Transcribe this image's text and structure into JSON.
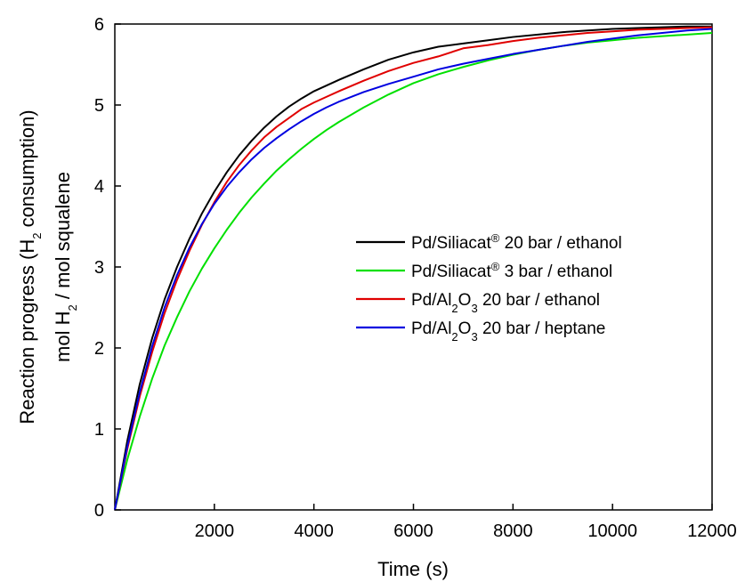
{
  "chart_data": {
    "type": "line",
    "xlabel": "Time (s)",
    "ylabel_line1": {
      "prefix": "Reaction progress (H",
      "sub": "2",
      "suffix": " consumption)"
    },
    "ylabel_line2": {
      "prefix": "mol H",
      "sub": "2",
      "suffix": " / mol squalene"
    },
    "xlim": [
      0,
      12000
    ],
    "ylim": [
      0,
      6
    ],
    "xticks": [
      2000,
      4000,
      6000,
      8000,
      10000,
      12000
    ],
    "yticks": [
      0,
      1,
      2,
      3,
      4,
      5,
      6
    ],
    "grid": false,
    "legend_position": "center-right",
    "series": [
      {
        "legend": {
          "parts": [
            {
              "t": "Pd/Siliacat"
            },
            {
              "t": "®",
              "sup": true
            },
            {
              "t": "  20 bar / ethanol"
            }
          ]
        },
        "color": "#000000",
        "x": [
          0,
          250,
          500,
          750,
          1000,
          1250,
          1500,
          1750,
          2000,
          2250,
          2500,
          2750,
          3000,
          3250,
          3500,
          3750,
          4000,
          4250,
          4500,
          5000,
          5500,
          6000,
          6500,
          7000,
          7500,
          8000,
          8500,
          9000,
          9500,
          10000,
          10500,
          11000,
          11500,
          12000
        ],
        "y": [
          0,
          0.85,
          1.55,
          2.12,
          2.6,
          3.0,
          3.35,
          3.66,
          3.93,
          4.17,
          4.38,
          4.56,
          4.72,
          4.86,
          4.98,
          5.08,
          5.17,
          5.24,
          5.31,
          5.44,
          5.56,
          5.65,
          5.72,
          5.76,
          5.8,
          5.84,
          5.87,
          5.9,
          5.92,
          5.94,
          5.95,
          5.96,
          5.97,
          5.97
        ]
      },
      {
        "legend": {
          "parts": [
            {
              "t": "Pd/Siliacat"
            },
            {
              "t": "®",
              "sup": true
            },
            {
              "t": " 3 bar / ethanol"
            }
          ]
        },
        "color": "#00e000",
        "x": [
          0,
          250,
          500,
          750,
          1000,
          1250,
          1500,
          1750,
          2000,
          2250,
          2500,
          2750,
          3000,
          3250,
          3500,
          3750,
          4000,
          4250,
          4500,
          5000,
          5500,
          6000,
          6500,
          7000,
          7500,
          8000,
          8500,
          9000,
          9500,
          10000,
          10500,
          11000,
          11500,
          12000
        ],
        "y": [
          0,
          0.62,
          1.15,
          1.62,
          2.03,
          2.38,
          2.7,
          2.98,
          3.23,
          3.46,
          3.67,
          3.86,
          4.03,
          4.19,
          4.33,
          4.46,
          4.58,
          4.69,
          4.79,
          4.97,
          5.13,
          5.27,
          5.38,
          5.47,
          5.55,
          5.62,
          5.68,
          5.73,
          5.77,
          5.8,
          5.83,
          5.85,
          5.87,
          5.89
        ]
      },
      {
        "legend": {
          "parts": [
            {
              "t": "Pd/Al"
            },
            {
              "t": "2",
              "sub": true
            },
            {
              "t": "O"
            },
            {
              "t": "3",
              "sub": true
            },
            {
              "t": " 20 bar / ethanol"
            }
          ]
        },
        "color": "#e00000",
        "x": [
          0,
          250,
          500,
          750,
          1000,
          1250,
          1500,
          1750,
          2000,
          2250,
          2500,
          2750,
          3000,
          3250,
          3500,
          3750,
          4000,
          4250,
          4500,
          5000,
          5500,
          6000,
          6500,
          7000,
          7500,
          8000,
          8500,
          9000,
          9500,
          10000,
          10500,
          11000,
          11500,
          12000
        ],
        "y": [
          0,
          0.75,
          1.4,
          1.95,
          2.43,
          2.84,
          3.2,
          3.52,
          3.8,
          4.05,
          4.26,
          4.44,
          4.6,
          4.73,
          4.84,
          4.95,
          5.03,
          5.1,
          5.17,
          5.3,
          5.42,
          5.52,
          5.6,
          5.7,
          5.74,
          5.79,
          5.83,
          5.86,
          5.89,
          5.91,
          5.93,
          5.94,
          5.95,
          5.96
        ]
      },
      {
        "legend": {
          "parts": [
            {
              "t": "Pd/Al"
            },
            {
              "t": "2",
              "sub": true
            },
            {
              "t": "O"
            },
            {
              "t": "3",
              "sub": true
            },
            {
              "t": " 20 bar / heptane"
            }
          ]
        },
        "color": "#0000e0",
        "x": [
          0,
          250,
          500,
          750,
          1000,
          1250,
          1500,
          1750,
          2000,
          2250,
          2500,
          2750,
          3000,
          3250,
          3500,
          3750,
          4000,
          4250,
          4500,
          5000,
          5500,
          6000,
          6500,
          7000,
          7500,
          8000,
          8500,
          9000,
          9500,
          10000,
          10500,
          11000,
          11500,
          12000
        ],
        "y": [
          0,
          0.78,
          1.45,
          2.02,
          2.5,
          2.9,
          3.24,
          3.53,
          3.78,
          3.99,
          4.17,
          4.33,
          4.47,
          4.59,
          4.7,
          4.8,
          4.89,
          4.97,
          5.04,
          5.16,
          5.26,
          5.35,
          5.44,
          5.51,
          5.57,
          5.63,
          5.68,
          5.73,
          5.78,
          5.82,
          5.86,
          5.89,
          5.92,
          5.94
        ]
      }
    ]
  }
}
